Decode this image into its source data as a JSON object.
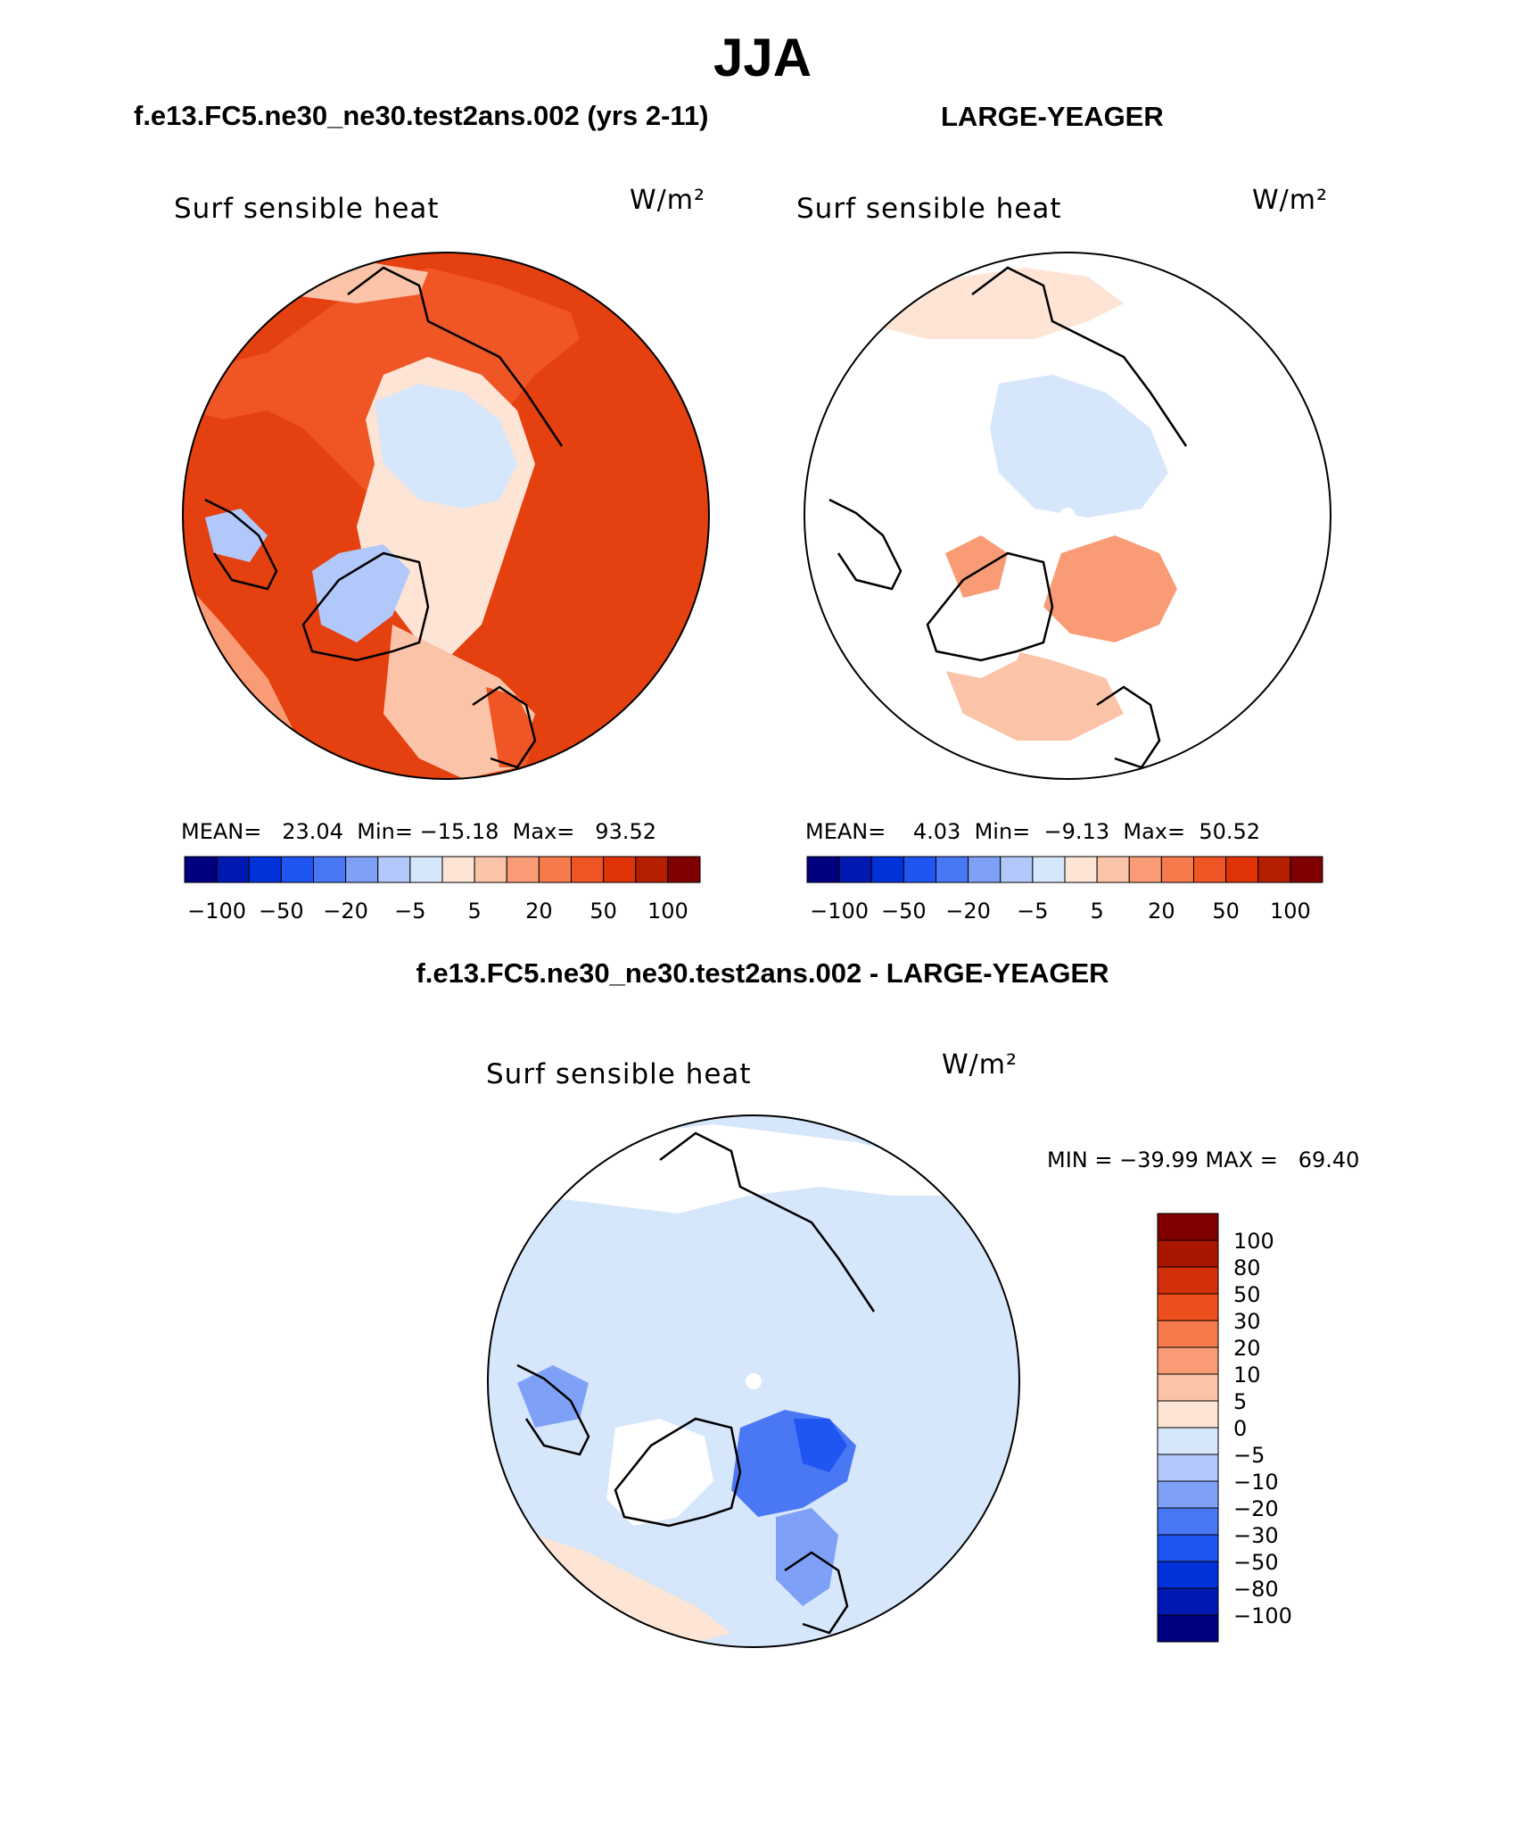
{
  "title": "JJA",
  "panels": {
    "left": {
      "case_label": "f.e13.FC5.ne30_ne30.test2ans.002 (yrs 2-11)",
      "variable": "Surf sensible heat",
      "units": "W/m²",
      "stats": {
        "mean_label": "MEAN=",
        "mean": "23.04",
        "min_label": "Min=",
        "min": "−15.18",
        "max_label": "Max=",
        "max": "93.52"
      }
    },
    "right": {
      "case_label": "LARGE-YEAGER",
      "variable": "Surf sensible heat",
      "units": "W/m²",
      "stats": {
        "mean_label": "MEAN=",
        "mean": "4.03",
        "min_label": "Min=",
        "min": "−9.13",
        "max_label": "Max=",
        "max": "50.52"
      }
    },
    "diff": {
      "case_label": "f.e13.FC5.ne30_ne30.test2ans.002 - LARGE-YEAGER",
      "variable": "Surf sensible heat",
      "units": "W/m²",
      "minmax_text": "MIN = −39.99 MAX =   69.40"
    }
  },
  "colorbar_top": {
    "tick_labels": [
      "−100",
      "−50",
      "−20",
      "−5",
      "5",
      "20",
      "50",
      "100"
    ],
    "colors": [
      "#00007f",
      "#0019b0",
      "#0032d9",
      "#1f55f0",
      "#4a78f5",
      "#7fa0f7",
      "#b2c8fa",
      "#d6e6fb",
      "#fde4d4",
      "#fbc4a8",
      "#f99c76",
      "#f57a4c",
      "#ef5525",
      "#e03408",
      "#b41f00",
      "#7f0000"
    ]
  },
  "colorbar_diff": {
    "labels": [
      "100",
      "80",
      "50",
      "30",
      "20",
      "10",
      "5",
      "0",
      "−5",
      "−10",
      "−20",
      "−30",
      "−50",
      "−80",
      "−100"
    ],
    "colors": [
      "#7f0000",
      "#a81600",
      "#d2300a",
      "#ee4f1e",
      "#f57a4c",
      "#f99c76",
      "#fbc4a8",
      "#fde4d4",
      "#d6e6fb",
      "#b2c8fa",
      "#7fa0f7",
      "#4a78f5",
      "#1f55f0",
      "#0032d9",
      "#0019b0",
      "#00007f"
    ]
  }
}
